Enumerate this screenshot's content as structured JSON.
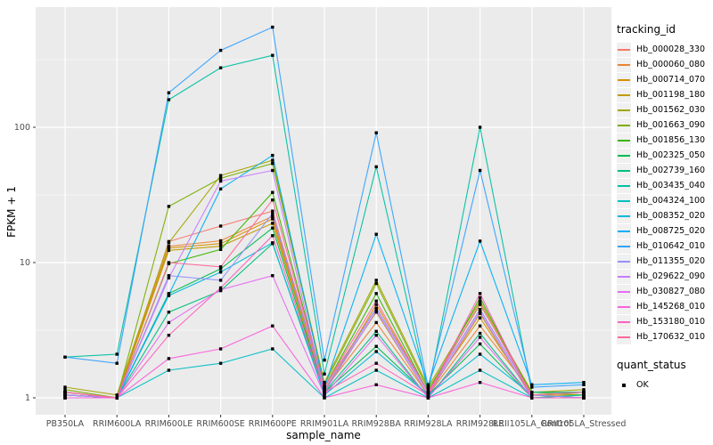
{
  "figure": {
    "background": "#ffffff",
    "panel_background": "#ebebeb",
    "grid_color": "#ffffff",
    "tick_color": "#333333",
    "tick_label_color": "#4d4d4d",
    "point_color": "#000000"
  },
  "chart_data": {
    "type": "line",
    "title": "",
    "xlabel": "sample_name",
    "ylabel": "FPKM + 1",
    "y_scale": "log10",
    "y_ticks": [
      1,
      10,
      100
    ],
    "y_minor_ticks": [
      3.162,
      31.62,
      316.2
    ],
    "ylim": [
      0.75,
      780
    ],
    "grid": true,
    "legend_position": "right",
    "marker": "black-square",
    "categories": [
      "PB350LA",
      "RRIM600LA",
      "RRIM600LE",
      "RRIM600SE",
      "RRIM600PE",
      "RRIM901LA",
      "RRIM928BA",
      "RRIM928LA",
      "RRIM928LE",
      "RRII105LA_Control",
      "RRII105LA_Stressed"
    ],
    "series": [
      {
        "name": "Hb_000028_330",
        "color": "#F8766D",
        "values": [
          1.1,
          1.0,
          14.3,
          18.6,
          24.0,
          1.2,
          4.6,
          1.1,
          4.5,
          1.05,
          1.1
        ]
      },
      {
        "name": "Hb_000060_080",
        "color": "#EA8331",
        "values": [
          1.05,
          1.0,
          13.2,
          14.5,
          22.0,
          1.15,
          3.6,
          1.05,
          3.4,
          1.1,
          1.1
        ]
      },
      {
        "name": "Hb_000714_070",
        "color": "#D89000",
        "values": [
          1.1,
          1.0,
          12.8,
          13.8,
          21.0,
          1.1,
          4.9,
          1.1,
          3.9,
          1.05,
          1.05
        ]
      },
      {
        "name": "Hb_001198_180",
        "color": "#C09B00",
        "values": [
          1.05,
          1.0,
          12.3,
          13.2,
          19.5,
          1.15,
          4.3,
          1.05,
          4.2,
          1.0,
          1.05
        ]
      },
      {
        "name": "Hb_001562_030",
        "color": "#A3A500",
        "values": [
          1.2,
          1.05,
          14.0,
          44.0,
          57.0,
          1.3,
          7.4,
          1.2,
          5.2,
          1.1,
          1.15
        ]
      },
      {
        "name": "Hb_001663_090",
        "color": "#7CAE00",
        "values": [
          1.15,
          1.0,
          26.0,
          42.0,
          54.0,
          1.25,
          7.0,
          1.15,
          4.9,
          1.1,
          1.05
        ]
      },
      {
        "name": "Hb_001856_130",
        "color": "#39B600",
        "values": [
          1.1,
          1.0,
          9.8,
          12.5,
          33.0,
          1.2,
          5.9,
          1.1,
          5.5,
          1.05,
          1.0
        ]
      },
      {
        "name": "Hb_002325_050",
        "color": "#00BB4E",
        "values": [
          1.05,
          1.0,
          5.9,
          9.0,
          18.0,
          1.1,
          2.4,
          1.05,
          2.5,
          1.0,
          1.0
        ]
      },
      {
        "name": "Hb_002739_160",
        "color": "#00BF7D",
        "values": [
          1.0,
          1.0,
          4.3,
          6.2,
          13.8,
          1.1,
          3.1,
          1.0,
          3.0,
          1.0,
          1.0
        ]
      },
      {
        "name": "Hb_003435_040",
        "color": "#00C1A3",
        "values": [
          2.0,
          2.1,
          160,
          275,
          340,
          1.5,
          51,
          1.1,
          100,
          1.1,
          1.1
        ]
      },
      {
        "name": "Hb_004324_100",
        "color": "#00BFC4",
        "values": [
          1.0,
          1.0,
          1.6,
          1.8,
          2.3,
          1.0,
          1.6,
          1.0,
          1.6,
          1.0,
          1.05
        ]
      },
      {
        "name": "Hb_008352_020",
        "color": "#00BBDA",
        "values": [
          1.05,
          1.0,
          5.7,
          8.5,
          14.0,
          1.05,
          2.2,
          1.05,
          2.1,
          1.05,
          1.1
        ]
      },
      {
        "name": "Hb_008725_020",
        "color": "#00B0F6",
        "values": [
          1.1,
          1.0,
          5.8,
          35.0,
          62.0,
          1.2,
          16.2,
          1.25,
          14.4,
          1.25,
          1.3
        ]
      },
      {
        "name": "Hb_010642_010",
        "color": "#35A2FF",
        "values": [
          2.0,
          1.8,
          180,
          370,
          550,
          1.9,
          91,
          1.2,
          48,
          1.2,
          1.25
        ]
      },
      {
        "name": "Hb_011355_020",
        "color": "#9590FF",
        "values": [
          1.1,
          1.0,
          8.0,
          7.4,
          23.0,
          1.15,
          4.6,
          1.1,
          4.5,
          1.05,
          1.0
        ]
      },
      {
        "name": "Hb_029622_090",
        "color": "#C77CFF",
        "values": [
          1.05,
          1.0,
          7.7,
          40.0,
          48.0,
          1.1,
          4.4,
          1.05,
          4.3,
          1.0,
          1.0
        ]
      },
      {
        "name": "Hb_030827_080",
        "color": "#E76BF3",
        "values": [
          1.0,
          1.0,
          3.6,
          6.3,
          8.0,
          1.05,
          2.9,
          1.0,
          2.8,
          1.0,
          1.0
        ]
      },
      {
        "name": "Hb_145268_010",
        "color": "#FA62DB",
        "values": [
          1.0,
          1.0,
          1.95,
          2.3,
          3.4,
          1.0,
          1.25,
          1.0,
          1.3,
          1.0,
          1.0
        ]
      },
      {
        "name": "Hb_153180_010",
        "color": "#FF62BC",
        "values": [
          1.1,
          1.0,
          2.9,
          6.5,
          15.8,
          1.1,
          1.8,
          1.05,
          5.9,
          1.0,
          1.0
        ]
      },
      {
        "name": "Hb_170632_010",
        "color": "#FF6A98",
        "values": [
          1.1,
          1.0,
          10.0,
          9.3,
          29.0,
          1.2,
          5.2,
          1.1,
          5.0,
          1.05,
          1.1
        ]
      }
    ]
  },
  "legend": {
    "tracking_title": "tracking_id",
    "quant_title": "quant_status",
    "quant_items": [
      {
        "label": "OK"
      }
    ]
  }
}
